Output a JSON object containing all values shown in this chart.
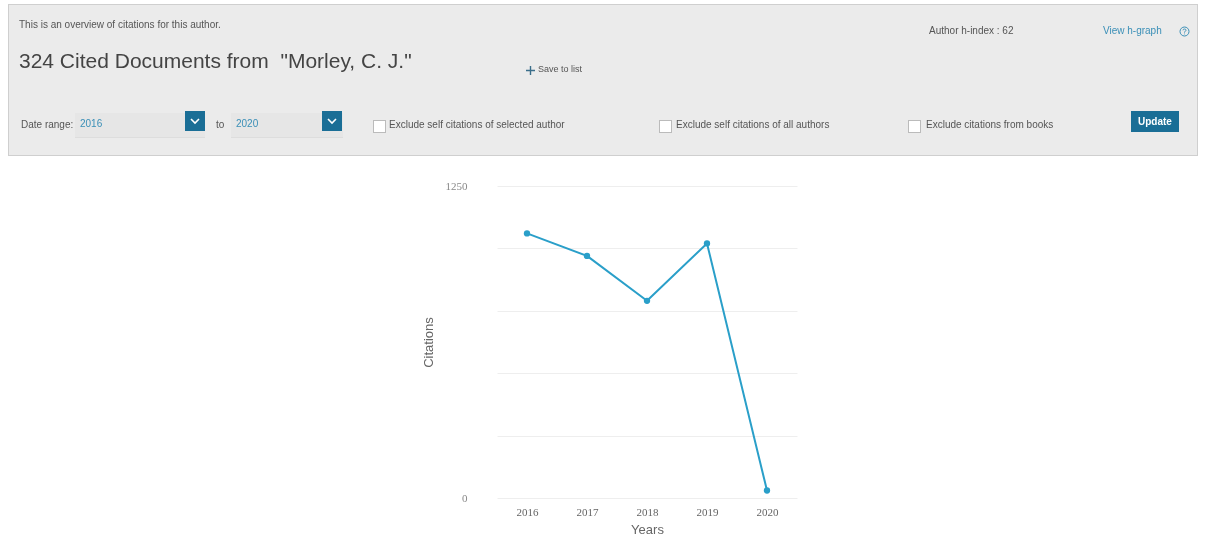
{
  "chart_data": {
    "type": "line",
    "title": "324 Cited Documents from  \"Morley, C. J.\"",
    "subtitle": "This is an overview of citations for this author.",
    "xlabel": "Years",
    "ylabel": "Citations",
    "categories": [
      "2016",
      "2017",
      "2018",
      "2019",
      "2020"
    ],
    "series": [
      {
        "color": "#2a9fc9",
        "values": [
          1060,
          970,
          790,
          1020,
          30
        ]
      }
    ],
    "ylim": [
      0,
      1250
    ],
    "yticks": [
      0,
      {
        "value": 250,
        "label": null
      },
      {
        "value": 500,
        "label": null
      },
      {
        "value": 750,
        "label": null
      },
      {
        "value": 1000,
        "label": null
      },
      1250
    ],
    "grid": "y",
    "marker": "circle",
    "line_style": "solid",
    "annotations": [
      "Save to list",
      "Author h-index : 62",
      "View h-graph",
      "Date range:",
      "2016",
      "to",
      "2020",
      "Exclude self citations of selected author",
      "Exclude self citations of all authors",
      "Exclude citations from books",
      "Update"
    ]
  }
}
